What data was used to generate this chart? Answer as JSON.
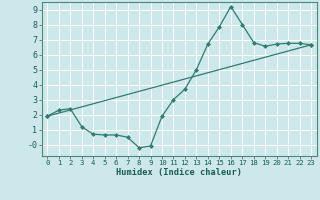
{
  "title": "",
  "xlabel": "Humidex (Indice chaleur)",
  "background_color": "#cce8eb",
  "line_color": "#2e7d6e",
  "grid_color": "#ffffff",
  "xlim": [
    -0.5,
    23.5
  ],
  "ylim": [
    -0.75,
    9.5
  ],
  "xticks": [
    0,
    1,
    2,
    3,
    4,
    5,
    6,
    7,
    8,
    9,
    10,
    11,
    12,
    13,
    14,
    15,
    16,
    17,
    18,
    19,
    20,
    21,
    22,
    23
  ],
  "yticks": [
    0,
    1,
    2,
    3,
    4,
    5,
    6,
    7,
    8,
    9
  ],
  "ytick_labels": [
    "-0",
    "1",
    "2",
    "3",
    "4",
    "5",
    "6",
    "7",
    "8",
    "9"
  ],
  "series1_x": [
    0,
    1,
    2,
    3,
    4,
    5,
    6,
    7,
    8,
    9,
    10,
    11,
    12,
    13,
    14,
    15,
    16,
    17,
    18,
    19,
    20,
    21,
    22,
    23
  ],
  "series1_y": [
    1.9,
    2.3,
    2.4,
    1.2,
    0.7,
    0.65,
    0.65,
    0.5,
    -0.2,
    -0.08,
    1.9,
    3.0,
    3.7,
    5.0,
    6.7,
    7.85,
    9.2,
    8.0,
    6.8,
    6.55,
    6.7,
    6.75,
    6.75,
    6.65
  ],
  "series2_x": [
    0,
    23
  ],
  "series2_y": [
    1.9,
    6.65
  ]
}
